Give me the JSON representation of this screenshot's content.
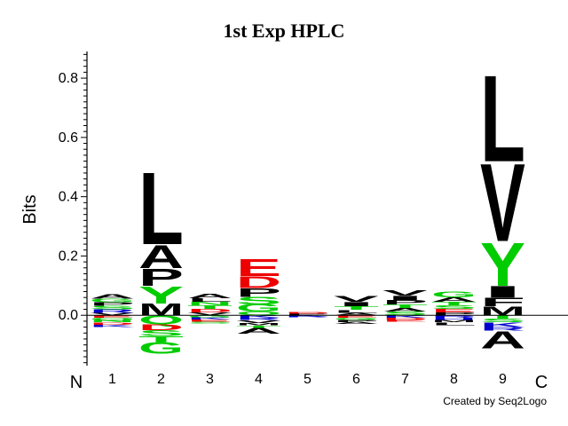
{
  "chart_data": {
    "type": "sequence-logo",
    "title": "1st Exp HPLC",
    "ylabel": "Bits",
    "ylim": [
      -0.17,
      0.89
    ],
    "yticks": [
      0.0,
      0.2,
      0.4,
      0.6,
      0.8
    ],
    "ytick_labels": [
      "0.0",
      "0.2",
      "0.4",
      "0.6",
      "0.8"
    ],
    "n_label": "N",
    "c_label": "C",
    "credit": "Created by Seq2Logo",
    "colors": {
      "black": "#000000",
      "green": "#00cc00",
      "red": "#ee0000",
      "blue": "#0000cc"
    },
    "positions": [
      {
        "label": "1",
        "pos": [
          {
            "l": "A",
            "h": 0.016,
            "c": "black"
          },
          {
            "l": "G",
            "h": 0.012,
            "c": "green"
          },
          {
            "l": "P",
            "h": 0.012,
            "c": "black"
          },
          {
            "l": "S",
            "h": 0.012,
            "c": "green"
          },
          {
            "l": "R",
            "h": 0.012,
            "c": "blue"
          },
          {
            "l": "V",
            "h": 0.008,
            "c": "black"
          }
        ],
        "neg": [
          {
            "l": "E",
            "h": 0.008,
            "c": "red"
          },
          {
            "l": "Q",
            "h": 0.008,
            "c": "green"
          },
          {
            "l": "N",
            "h": 0.008,
            "c": "green"
          },
          {
            "l": "D",
            "h": 0.008,
            "c": "red"
          },
          {
            "l": "K",
            "h": 0.007,
            "c": "blue"
          }
        ]
      },
      {
        "label": "2",
        "pos": [
          {
            "l": "L",
            "h": 0.25,
            "c": "black"
          },
          {
            "l": "A",
            "h": 0.08,
            "c": "black"
          },
          {
            "l": "P",
            "h": 0.06,
            "c": "black"
          },
          {
            "l": "Y",
            "h": 0.06,
            "c": "green"
          },
          {
            "l": "M",
            "h": 0.04,
            "c": "black"
          }
        ],
        "neg": [
          {
            "l": "Q",
            "h": 0.03,
            "c": "green"
          },
          {
            "l": "D",
            "h": 0.02,
            "c": "red"
          },
          {
            "l": "S",
            "h": 0.02,
            "c": "green"
          },
          {
            "l": "T",
            "h": 0.02,
            "c": "green"
          },
          {
            "l": "G",
            "h": 0.04,
            "c": "green"
          }
        ]
      },
      {
        "label": "3",
        "pos": [
          {
            "l": "A",
            "h": 0.016,
            "c": "black"
          },
          {
            "l": "L",
            "h": 0.012,
            "c": "black"
          },
          {
            "l": "N",
            "h": 0.012,
            "c": "green"
          },
          {
            "l": "T",
            "h": 0.012,
            "c": "green"
          },
          {
            "l": "D",
            "h": 0.012,
            "c": "red"
          },
          {
            "l": "V",
            "h": 0.01,
            "c": "black"
          }
        ],
        "neg": [
          {
            "l": "G",
            "h": 0.008,
            "c": "green"
          },
          {
            "l": "K",
            "h": 0.007,
            "c": "blue"
          },
          {
            "l": "E",
            "h": 0.007,
            "c": "red"
          },
          {
            "l": "S",
            "h": 0.006,
            "c": "green"
          }
        ]
      },
      {
        "label": "4",
        "pos": [
          {
            "l": "E",
            "h": 0.06,
            "c": "red"
          },
          {
            "l": "D",
            "h": 0.04,
            "c": "red"
          },
          {
            "l": "P",
            "h": 0.03,
            "c": "black"
          },
          {
            "l": "S",
            "h": 0.025,
            "c": "green"
          },
          {
            "l": "G",
            "h": 0.025,
            "c": "green"
          },
          {
            "l": "Q",
            "h": 0.012,
            "c": "green"
          }
        ],
        "neg": [
          {
            "l": "K",
            "h": 0.008,
            "c": "blue"
          },
          {
            "l": "R",
            "h": 0.008,
            "c": "blue"
          },
          {
            "l": "V",
            "h": 0.01,
            "c": "black"
          },
          {
            "l": "M",
            "h": 0.008,
            "c": "black"
          },
          {
            "l": "T",
            "h": 0.008,
            "c": "green"
          },
          {
            "l": "A",
            "h": 0.02,
            "c": "black"
          }
        ]
      },
      {
        "label": "5",
        "pos": [
          {
            "l": "D",
            "h": 0.004,
            "c": "red"
          },
          {
            "l": "E",
            "h": 0.004,
            "c": "red"
          },
          {
            "l": "P",
            "h": 0.003,
            "c": "black"
          }
        ],
        "neg": [
          {
            "l": "K",
            "h": 0.004,
            "c": "blue"
          },
          {
            "l": "R",
            "h": 0.003,
            "c": "blue"
          }
        ]
      },
      {
        "label": "6",
        "pos": [
          {
            "l": "V",
            "h": 0.02,
            "c": "black"
          },
          {
            "l": "I",
            "h": 0.015,
            "c": "black"
          },
          {
            "l": "T",
            "h": 0.012,
            "c": "green"
          },
          {
            "l": "L",
            "h": 0.01,
            "c": "black"
          },
          {
            "l": "A",
            "h": 0.008,
            "c": "black"
          }
        ],
        "neg": [
          {
            "l": "E",
            "h": 0.008,
            "c": "red"
          },
          {
            "l": "G",
            "h": 0.008,
            "c": "green"
          },
          {
            "l": "P",
            "h": 0.007,
            "c": "black"
          },
          {
            "l": "A",
            "h": 0.007,
            "c": "black"
          }
        ]
      },
      {
        "label": "7",
        "pos": [
          {
            "l": "V",
            "h": 0.018,
            "c": "black"
          },
          {
            "l": "I",
            "h": 0.015,
            "c": "black"
          },
          {
            "l": "P",
            "h": 0.015,
            "c": "black"
          },
          {
            "l": "T",
            "h": 0.012,
            "c": "green"
          },
          {
            "l": "A",
            "h": 0.012,
            "c": "black"
          },
          {
            "l": "S",
            "h": 0.012,
            "c": "green"
          }
        ],
        "neg": [
          {
            "l": "K",
            "h": 0.008,
            "c": "blue"
          },
          {
            "l": "D",
            "h": 0.008,
            "c": "red"
          },
          {
            "l": "E",
            "h": 0.006,
            "c": "red"
          }
        ]
      },
      {
        "label": "8",
        "pos": [
          {
            "l": "G",
            "h": 0.02,
            "c": "green"
          },
          {
            "l": "A",
            "h": 0.015,
            "c": "black"
          },
          {
            "l": "T",
            "h": 0.012,
            "c": "green"
          },
          {
            "l": "S",
            "h": 0.012,
            "c": "green"
          },
          {
            "l": "E",
            "h": 0.012,
            "c": "red"
          },
          {
            "l": "P",
            "h": 0.01,
            "c": "black"
          }
        ],
        "neg": [
          {
            "l": "R",
            "h": 0.008,
            "c": "blue"
          },
          {
            "l": "H",
            "h": 0.008,
            "c": "blue"
          },
          {
            "l": "M",
            "h": 0.008,
            "c": "black"
          },
          {
            "l": "L",
            "h": 0.01,
            "c": "black"
          }
        ]
      },
      {
        "label": "9",
        "pos": [
          {
            "l": "L",
            "h": 0.3,
            "c": "black"
          },
          {
            "l": "V",
            "h": 0.27,
            "c": "black"
          },
          {
            "l": "Y",
            "h": 0.15,
            "c": "green"
          },
          {
            "l": "I",
            "h": 0.04,
            "c": "black"
          },
          {
            "l": "F",
            "h": 0.03,
            "c": "black"
          },
          {
            "l": "M",
            "h": 0.03,
            "c": "black"
          }
        ],
        "neg": [
          {
            "l": "T",
            "h": 0.012,
            "c": "green"
          },
          {
            "l": "S",
            "h": 0.012,
            "c": "green"
          },
          {
            "l": "K",
            "h": 0.015,
            "c": "blue"
          },
          {
            "l": "R",
            "h": 0.012,
            "c": "blue"
          },
          {
            "l": "A",
            "h": 0.06,
            "c": "black"
          }
        ]
      }
    ]
  }
}
